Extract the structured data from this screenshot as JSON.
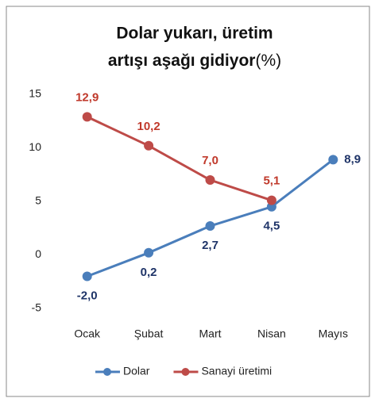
{
  "chart_data": {
    "type": "line",
    "title": [
      "Dolar yukarı, üretim",
      "artışı aşağı gidiyor"
    ],
    "title_unit": "(%)",
    "categories": [
      "Ocak",
      "Şubat",
      "Mart",
      "Nisan",
      "Mayıs"
    ],
    "series": [
      {
        "name": "Dolar",
        "color": "#4a7ebb",
        "label_color": "#1f3468",
        "values": [
          -2.0,
          0.2,
          2.7,
          4.5,
          8.9
        ],
        "value_labels": [
          "-2,0",
          "0,2",
          "2,7",
          "4,5",
          "8,9"
        ]
      },
      {
        "name": "Sanayi üretimi",
        "color": "#be4b48",
        "label_color": "#c0392b",
        "values": [
          12.9,
          10.2,
          7.0,
          5.1,
          null
        ],
        "value_labels": [
          "12,9",
          "10,2",
          "7,0",
          "5,1",
          null
        ]
      }
    ],
    "ylim": [
      -5,
      15
    ],
    "yticks": [
      -5,
      0,
      5,
      10,
      15
    ],
    "grid": false,
    "legend": "bottom"
  }
}
